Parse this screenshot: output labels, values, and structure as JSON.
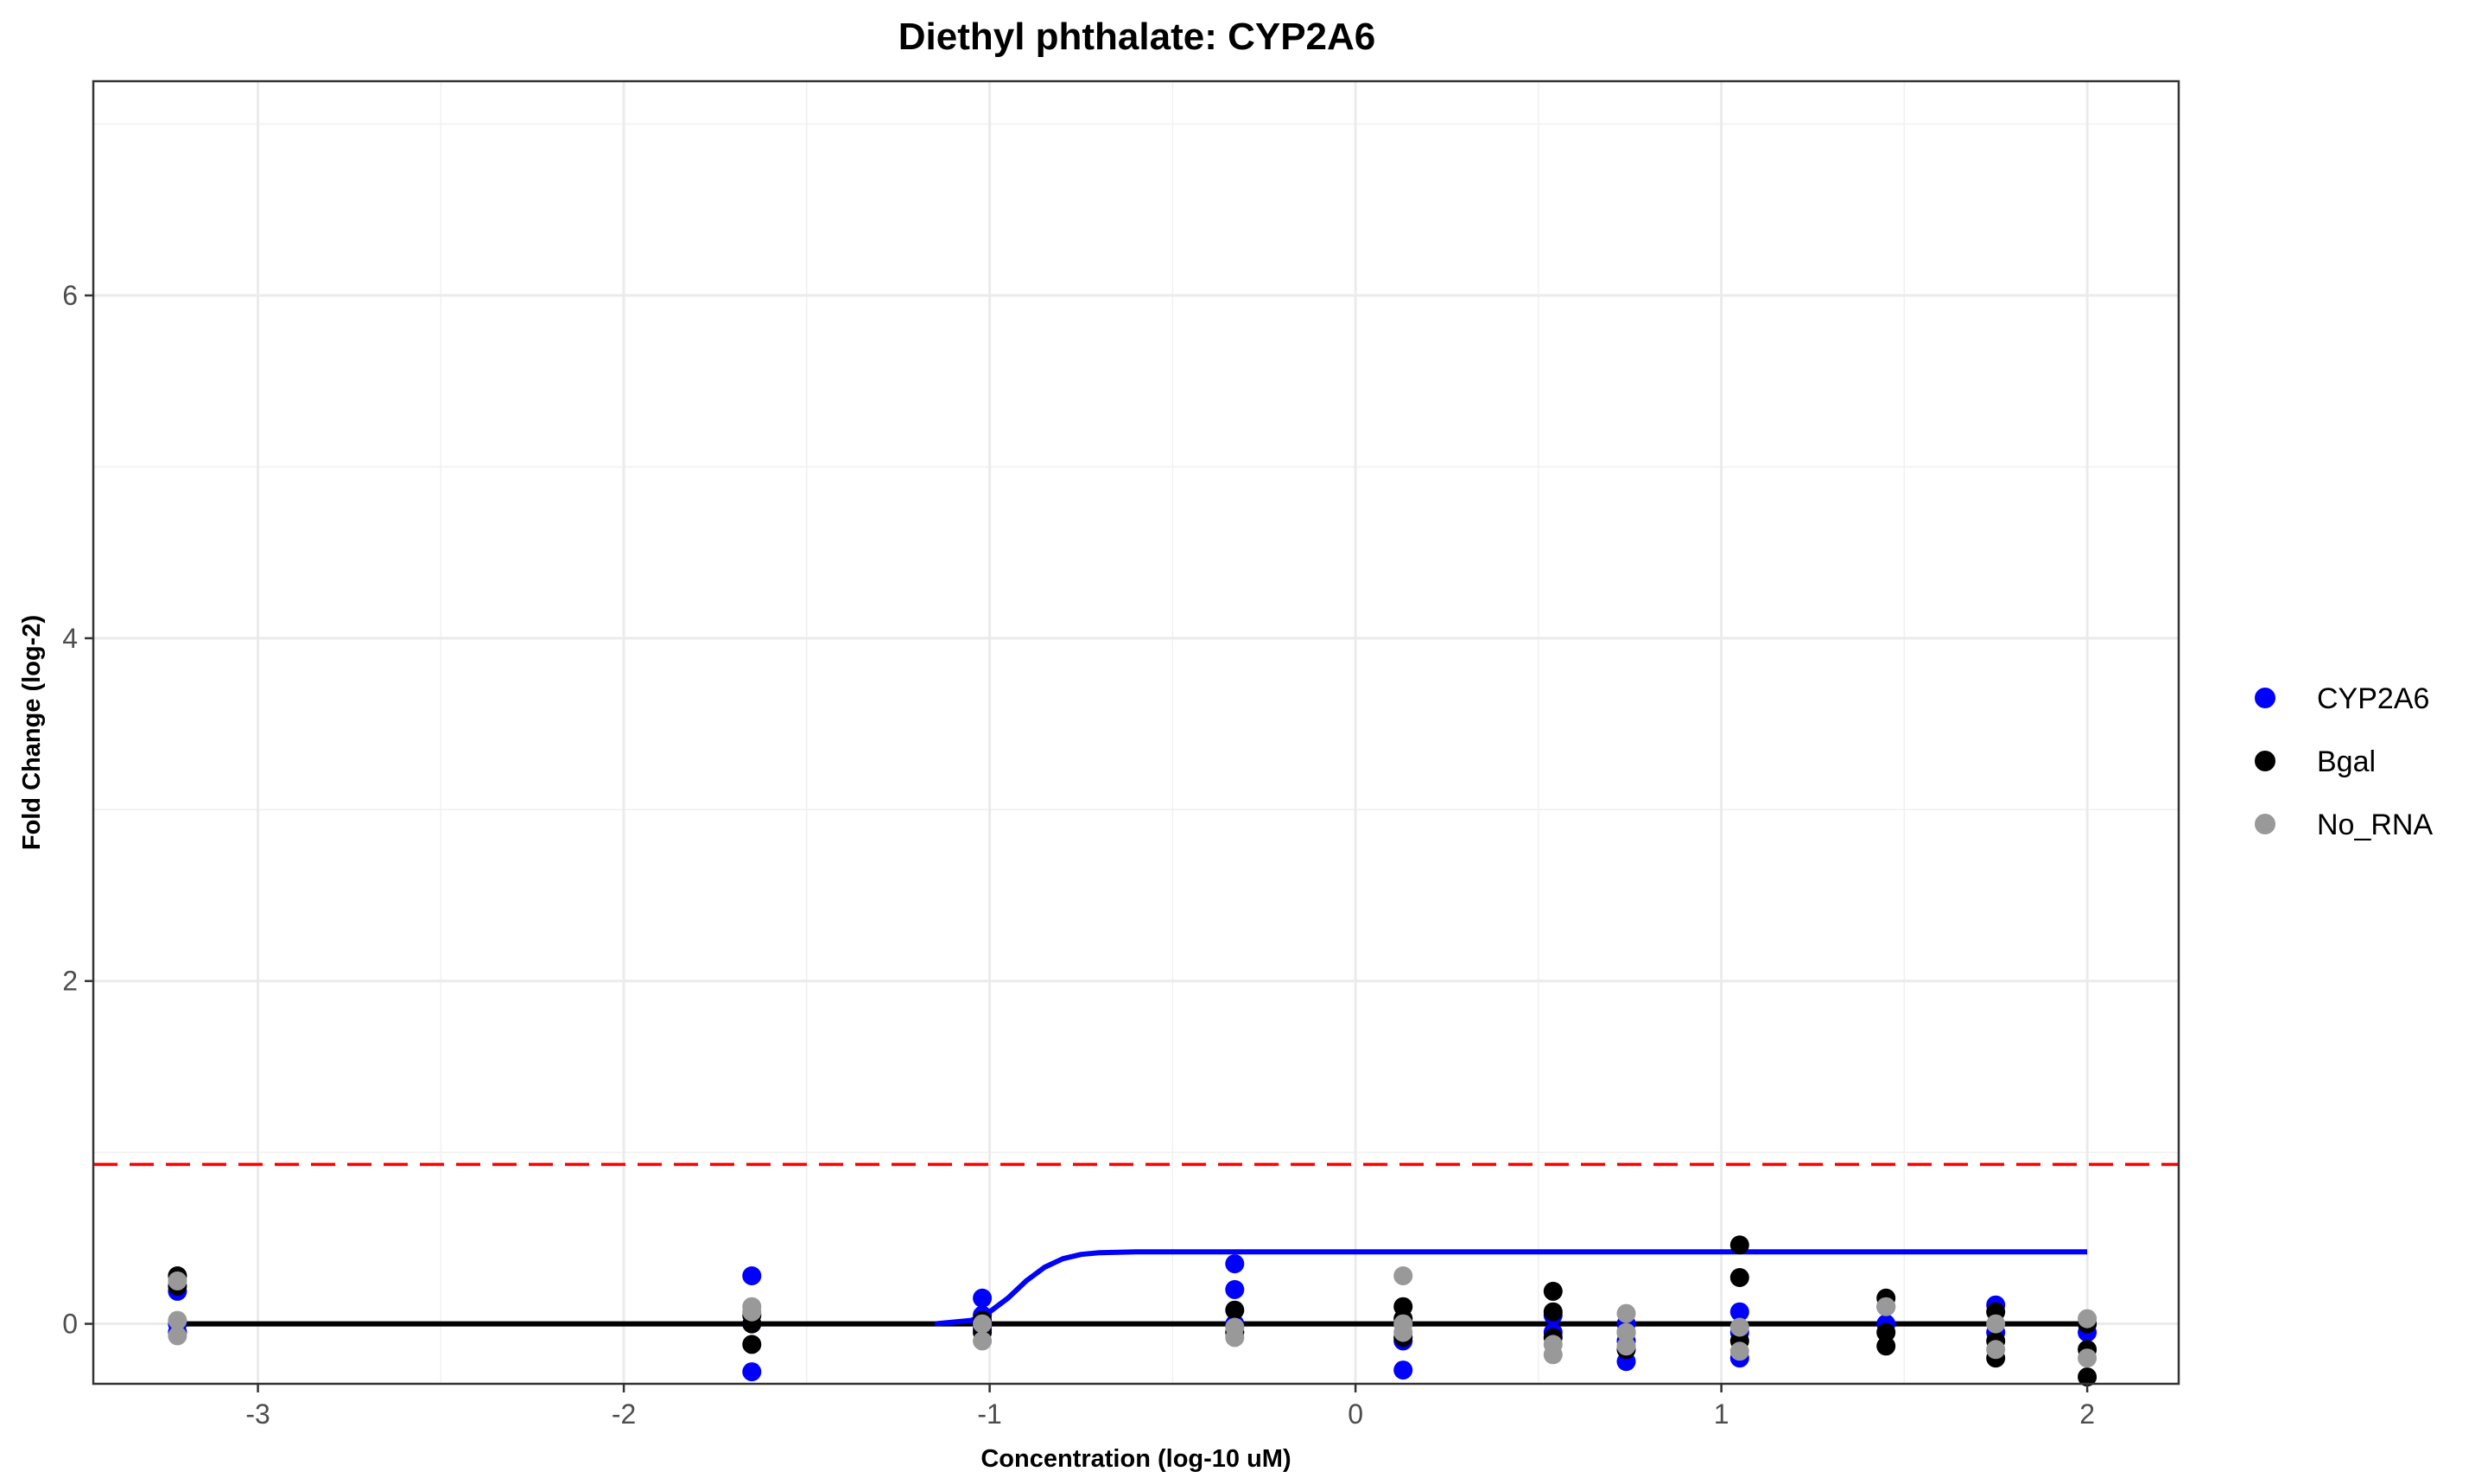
{
  "chart_data": {
    "type": "scatter",
    "title": "Diethyl phthalate: CYP2A6",
    "xlabel": "Concentration (log-10 uM)",
    "ylabel": "Fold Change (log-2)",
    "xlim": [
      -3.45,
      2.25
    ],
    "ylim": [
      -0.35,
      7.25
    ],
    "xticks": [
      -3,
      -2,
      -1,
      0,
      1,
      2
    ],
    "yticks": [
      0,
      2,
      4,
      6
    ],
    "grid": true,
    "legend_position": "right",
    "threshold": {
      "y": 0.93,
      "color": "#ff0000",
      "style": "dashed"
    },
    "series": [
      {
        "name": "CYP2A6",
        "color": "#0000ff",
        "points": [
          [
            -3.22,
            0.19
          ],
          [
            -3.22,
            0.0
          ],
          [
            -3.22,
            -0.05
          ],
          [
            -1.65,
            0.28
          ],
          [
            -1.65,
            0.0
          ],
          [
            -1.65,
            -0.28
          ],
          [
            -1.02,
            0.15
          ],
          [
            -1.02,
            0.05
          ],
          [
            -1.02,
            -0.03
          ],
          [
            -0.33,
            0.35
          ],
          [
            -0.33,
            0.2
          ],
          [
            -0.33,
            0.0
          ],
          [
            0.13,
            0.0
          ],
          [
            0.13,
            -0.1
          ],
          [
            0.13,
            -0.27
          ],
          [
            0.54,
            0.05
          ],
          [
            0.54,
            -0.05
          ],
          [
            0.74,
            0.0
          ],
          [
            0.74,
            -0.1
          ],
          [
            0.74,
            -0.22
          ],
          [
            1.05,
            0.07
          ],
          [
            1.05,
            -0.05
          ],
          [
            1.05,
            -0.2
          ],
          [
            1.45,
            0.1
          ],
          [
            1.45,
            0.0
          ],
          [
            1.75,
            0.11
          ],
          [
            1.75,
            -0.05
          ],
          [
            2.0,
            0.0
          ],
          [
            2.0,
            -0.05
          ]
        ],
        "fit": [
          [
            -1.15,
            0.0
          ],
          [
            -1.05,
            0.02
          ],
          [
            -1.0,
            0.07
          ],
          [
            -0.95,
            0.15
          ],
          [
            -0.9,
            0.25
          ],
          [
            -0.85,
            0.33
          ],
          [
            -0.8,
            0.38
          ],
          [
            -0.75,
            0.405
          ],
          [
            -0.7,
            0.415
          ],
          [
            -0.6,
            0.42
          ],
          [
            2.0,
            0.42
          ]
        ]
      },
      {
        "name": "Bgal",
        "color": "#000000",
        "points": [
          [
            -3.22,
            0.28
          ],
          [
            -3.22,
            0.22
          ],
          [
            -1.65,
            0.05
          ],
          [
            -1.65,
            0.0
          ],
          [
            -1.65,
            -0.12
          ],
          [
            -1.02,
            0.02
          ],
          [
            -1.02,
            -0.05
          ],
          [
            -0.33,
            0.08
          ],
          [
            -0.33,
            -0.05
          ],
          [
            0.13,
            0.1
          ],
          [
            0.13,
            0.03
          ],
          [
            0.13,
            -0.08
          ],
          [
            0.54,
            0.19
          ],
          [
            0.54,
            0.07
          ],
          [
            0.54,
            -0.08
          ],
          [
            0.74,
            -0.15
          ],
          [
            0.74,
            -0.05
          ],
          [
            1.05,
            0.46
          ],
          [
            1.05,
            0.27
          ],
          [
            1.05,
            -0.1
          ],
          [
            1.45,
            0.15
          ],
          [
            1.45,
            -0.05
          ],
          [
            1.45,
            -0.13
          ],
          [
            1.75,
            0.07
          ],
          [
            1.75,
            -0.1
          ],
          [
            1.75,
            -0.2
          ],
          [
            2.0,
            0.0
          ],
          [
            2.0,
            -0.15
          ],
          [
            2.0,
            -0.31
          ]
        ],
        "fit": [
          [
            -3.22,
            0.0
          ],
          [
            2.0,
            0.0
          ]
        ]
      },
      {
        "name": "No_RNA",
        "color": "#999999",
        "points": [
          [
            -3.22,
            0.25
          ],
          [
            -3.22,
            0.02
          ],
          [
            -3.22,
            -0.07
          ],
          [
            -1.65,
            0.1
          ],
          [
            -1.65,
            0.07
          ],
          [
            -1.02,
            0.0
          ],
          [
            -1.02,
            -0.1
          ],
          [
            -0.33,
            -0.02
          ],
          [
            -0.33,
            -0.08
          ],
          [
            0.13,
            0.28
          ],
          [
            0.13,
            0.0
          ],
          [
            0.13,
            -0.05
          ],
          [
            0.54,
            -0.12
          ],
          [
            0.54,
            -0.18
          ],
          [
            0.74,
            0.06
          ],
          [
            0.74,
            -0.05
          ],
          [
            0.74,
            -0.13
          ],
          [
            1.05,
            -0.02
          ],
          [
            1.05,
            -0.16
          ],
          [
            1.45,
            0.1
          ],
          [
            1.75,
            0.0
          ],
          [
            1.75,
            -0.15
          ],
          [
            2.0,
            0.03
          ],
          [
            2.0,
            -0.2
          ]
        ],
        "fit": [
          [
            -3.22,
            0.0
          ],
          [
            2.0,
            0.0
          ]
        ]
      }
    ]
  }
}
